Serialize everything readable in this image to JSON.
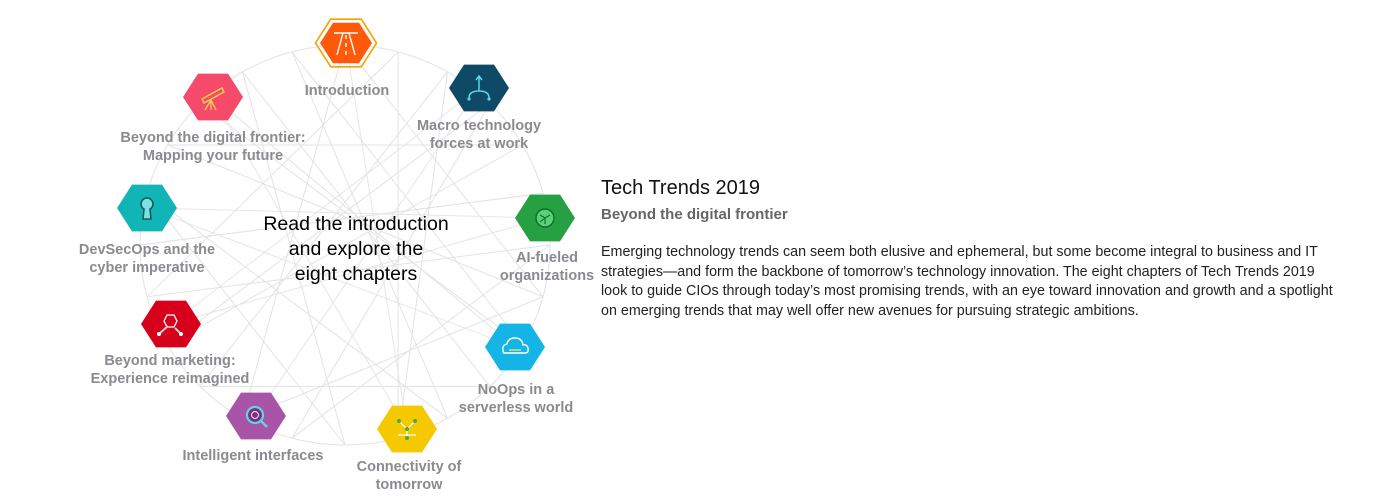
{
  "center": {
    "lines": [
      "Read the introduction",
      "and explore the",
      "eight chapters"
    ]
  },
  "chapters": [
    {
      "label": [
        "Introduction"
      ],
      "color": "#FF5A0A",
      "icon": "road-icon"
    },
    {
      "label": [
        "Macro technology",
        "forces at work"
      ],
      "color": "#0E4A66",
      "icon": "converging-arrows-icon"
    },
    {
      "label": [
        "AI-fueled",
        "organizations"
      ],
      "color": "#26A042",
      "icon": "neural-chip-icon"
    },
    {
      "label": [
        "NoOps in a",
        "serverless world"
      ],
      "color": "#14B4E6",
      "icon": "cloud-icon"
    },
    {
      "label": [
        "Connectivity of",
        "tomorrow"
      ],
      "color": "#F5C800",
      "icon": "network-nodes-icon"
    },
    {
      "label": [
        "Intelligent interfaces"
      ],
      "color": "#A855A8",
      "icon": "magnifier-icon"
    },
    {
      "label": [
        "Beyond marketing:",
        "Experience reimagined"
      ],
      "color": "#D6001C",
      "icon": "hexagon-molecule-icon"
    },
    {
      "label": [
        "DevSecOps and the",
        "cyber imperative"
      ],
      "color": "#12B5B5",
      "icon": "keyhole-icon"
    },
    {
      "label": [
        "Beyond the digital frontier:",
        "Mapping your future"
      ],
      "color": "#F54A6A",
      "icon": "telescope-icon"
    }
  ],
  "info": {
    "title": "Tech Trends 2019",
    "subtitle": "Beyond the digital frontier",
    "body": "Emerging technology trends can seem both elusive and ephemeral, but some become integral to business and IT strategies—and form the backbone of tomorrow’s technology innovation. The eight chapters of Tech Trends 2019 look to guide CIOs through today’s most promising trends, with an eye toward innovation and growth and a spotlight on emerging trends that may well offer new avenues for pursuing strategic ambitions."
  }
}
